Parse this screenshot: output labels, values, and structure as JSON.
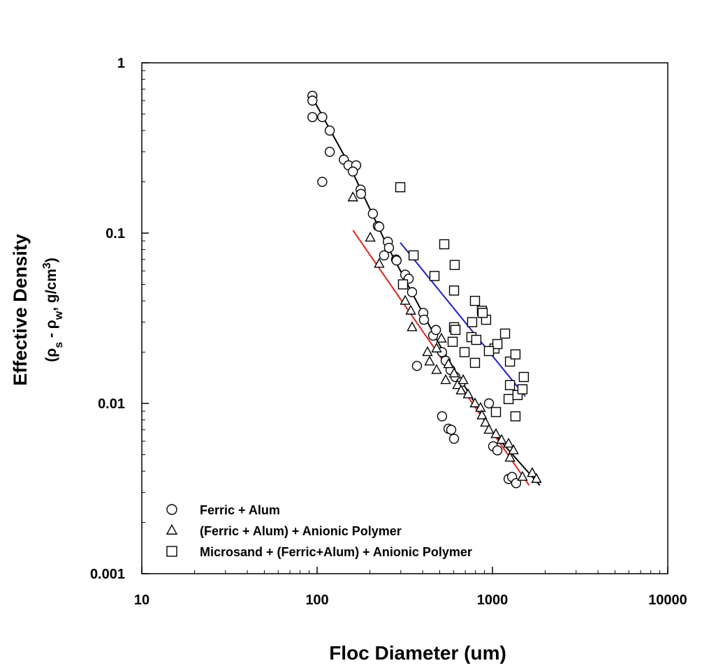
{
  "chart_data": {
    "type": "scatter",
    "x_label": "Floc Diameter (um)",
    "y_label": "Effective Density",
    "y_label_units": [
      "(ρ",
      "s",
      " - ρ",
      "w",
      ", g/cm",
      "3",
      ")"
    ],
    "xscale": "log",
    "yscale": "log",
    "xlim": [
      10,
      10000
    ],
    "ylim": [
      0.001,
      1
    ],
    "xticks": [
      10,
      100,
      1000,
      10000
    ],
    "yticks": [
      0.001,
      0.01,
      0.1,
      1
    ],
    "legend": "lower left",
    "series": [
      {
        "name": "Ferric + Alum",
        "marker": "circle",
        "color": "#000000",
        "x": [
          94,
          94,
          94,
          107,
          118,
          118,
          107,
          142,
          151,
          167,
          160,
          177,
          178,
          208,
          222,
          226,
          253,
          257,
          241,
          282,
          284,
          318,
          333,
          348,
          403,
          407,
          459,
          476,
          371,
          516,
          541,
          577,
          615,
          662,
          516,
          561,
          582,
          604,
          955,
          1009,
          1067,
          1236,
          1294,
          1365
        ],
        "values": [
          0.64,
          0.6,
          0.48,
          0.48,
          0.4,
          0.3,
          0.2,
          0.27,
          0.25,
          0.25,
          0.23,
          0.18,
          0.17,
          0.13,
          0.11,
          0.109,
          0.089,
          0.082,
          0.074,
          0.07,
          0.069,
          0.057,
          0.054,
          0.045,
          0.034,
          0.031,
          0.025,
          0.027,
          0.0166,
          0.02,
          0.0178,
          0.0157,
          0.0143,
          0.0133,
          0.0084,
          0.0071,
          0.007,
          0.0062,
          0.01,
          0.0056,
          0.0053,
          0.0036,
          0.0037,
          0.0034
        ]
      },
      {
        "name": "(Ferric + Alum) + Anionic Polymer",
        "marker": "triangle",
        "color": "#000000",
        "x": [
          160,
          201,
          226,
          318,
          342,
          348,
          426,
          438,
          480,
          512,
          480,
          541,
          561,
          604,
          632,
          662,
          681,
          726,
          795,
          855,
          871,
          912,
          955,
          1047,
          1127,
          1236,
          1259,
          1318,
          1483,
          1686,
          1782
        ],
        "values": [
          0.162,
          0.094,
          0.066,
          0.04,
          0.035,
          0.028,
          0.02,
          0.0176,
          0.021,
          0.024,
          0.0157,
          0.0137,
          0.017,
          0.015,
          0.0128,
          0.0119,
          0.0137,
          0.0113,
          0.01,
          0.0094,
          0.0085,
          0.0077,
          0.007,
          0.0066,
          0.0061,
          0.0058,
          0.0048,
          0.0053,
          0.0037,
          0.0039,
          0.0036
        ]
      },
      {
        "name": "Microsand + (Ferric+Alum) + Anionic Polymer",
        "marker": "square",
        "color": "#000000",
        "x": [
          298,
          355,
          467,
          531,
          609,
          604,
          309,
          604,
          795,
          871,
          920,
          766,
          879,
          1027,
          593,
          615,
          693,
          795,
          759,
          1067,
          1180,
          1047,
          1259,
          1353,
          1259,
          1236,
          1390,
          1510,
          1483,
          1353,
          955,
          809
        ],
        "values": [
          0.186,
          0.074,
          0.056,
          0.086,
          0.065,
          0.046,
          0.05,
          0.028,
          0.04,
          0.035,
          0.031,
          0.03,
          0.034,
          0.021,
          0.023,
          0.027,
          0.02,
          0.0173,
          0.0245,
          0.0223,
          0.0257,
          0.0089,
          0.0176,
          0.0194,
          0.0128,
          0.0106,
          0.0112,
          0.0143,
          0.0121,
          0.0084,
          0.0203,
          0.0236
        ]
      }
    ],
    "fit_lines": [
      {
        "color": "#000000",
        "x": [
          92,
          150,
          250,
          500,
          1000,
          1866
        ],
        "values": [
          0.65,
          0.26,
          0.085,
          0.022,
          0.0068,
          0.0033
        ]
      },
      {
        "color": "#e02020",
        "x": [
          160,
          1620
        ],
        "values": [
          0.104,
          0.0033
        ]
      },
      {
        "color": "#1a1ad0",
        "x": [
          298,
          1540
        ],
        "values": [
          0.088,
          0.011
        ]
      }
    ]
  }
}
